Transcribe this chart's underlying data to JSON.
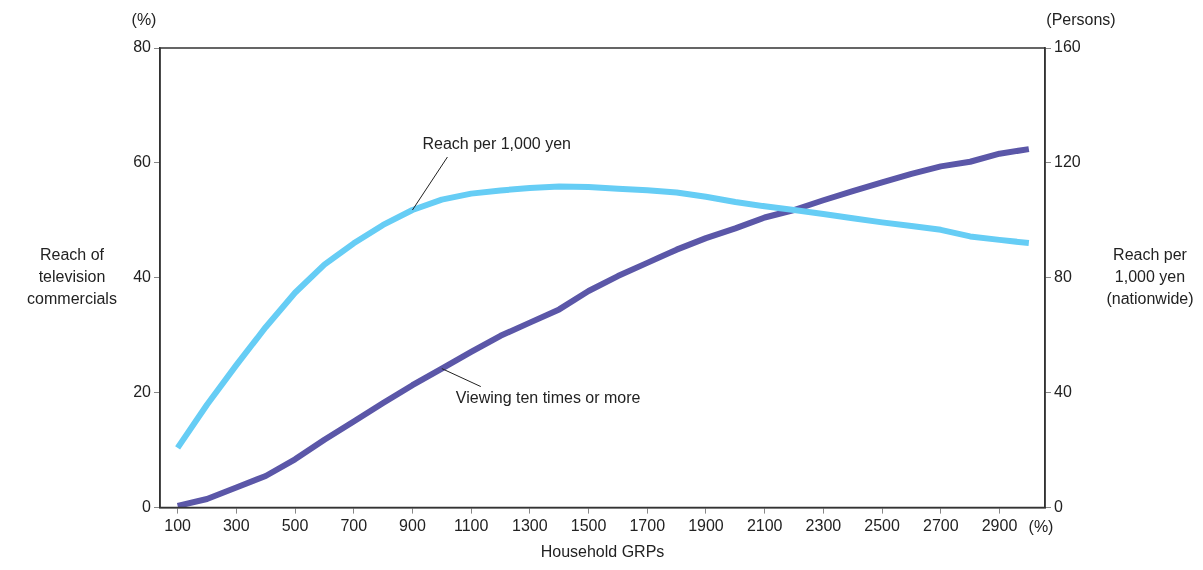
{
  "chart_data": {
    "type": "line",
    "xlabel": "Household GRPs",
    "ylabel": "Reach of television commercials",
    "y2label": "Reach per 1,000 yen (nationwide)",
    "x": [
      100,
      200,
      300,
      400,
      500,
      600,
      700,
      800,
      900,
      1000,
      1100,
      1200,
      1300,
      1400,
      1500,
      1600,
      1700,
      1800,
      1900,
      2000,
      2100,
      2200,
      2300,
      2400,
      2500,
      2600,
      2700,
      2800,
      2900,
      3000
    ],
    "series": [
      {
        "name": "Reach per 1,000 yen",
        "color": "#66cdf5",
        "axis": "y2",
        "values": [
          20.8,
          35.8,
          49.6,
          62.8,
          74.8,
          84.6,
          92.0,
          98.4,
          103.6,
          107.2,
          109.3,
          110.4,
          111.3,
          111.8,
          111.6,
          111.0,
          110.5,
          109.7,
          108.2,
          106.4,
          104.9,
          103.6,
          102.2,
          100.7,
          99.3,
          98.0,
          96.7,
          94.4,
          93.2,
          92.1
        ]
      },
      {
        "name": "Viewing ten times or more",
        "color": "#5b57a8",
        "values": [
          0.3,
          1.5,
          3.5,
          5.5,
          8.4,
          11.8,
          15.0,
          18.2,
          21.3,
          24.2,
          27.1,
          29.9,
          32.2,
          34.5,
          37.7,
          40.3,
          42.6,
          44.9,
          46.9,
          48.6,
          50.5,
          51.8,
          53.5,
          55.1,
          56.6,
          58.1,
          59.4,
          60.2,
          61.6,
          62.4
        ]
      }
    ],
    "xlim": [
      40,
      3055
    ],
    "xticks": [
      100,
      300,
      500,
      700,
      900,
      1100,
      1300,
      1500,
      1700,
      1900,
      2100,
      2300,
      2500,
      2700,
      2900
    ],
    "ylim": [
      0,
      80
    ],
    "yticks": [
      0,
      20,
      40,
      60,
      80
    ],
    "y2lim": [
      0,
      160
    ],
    "y2ticks": [
      0,
      40,
      80,
      120,
      160
    ],
    "grid": false,
    "marker": "none",
    "line_style": "solid",
    "annotations": [
      "(%)",
      "(Persons)",
      "(%)"
    ]
  }
}
